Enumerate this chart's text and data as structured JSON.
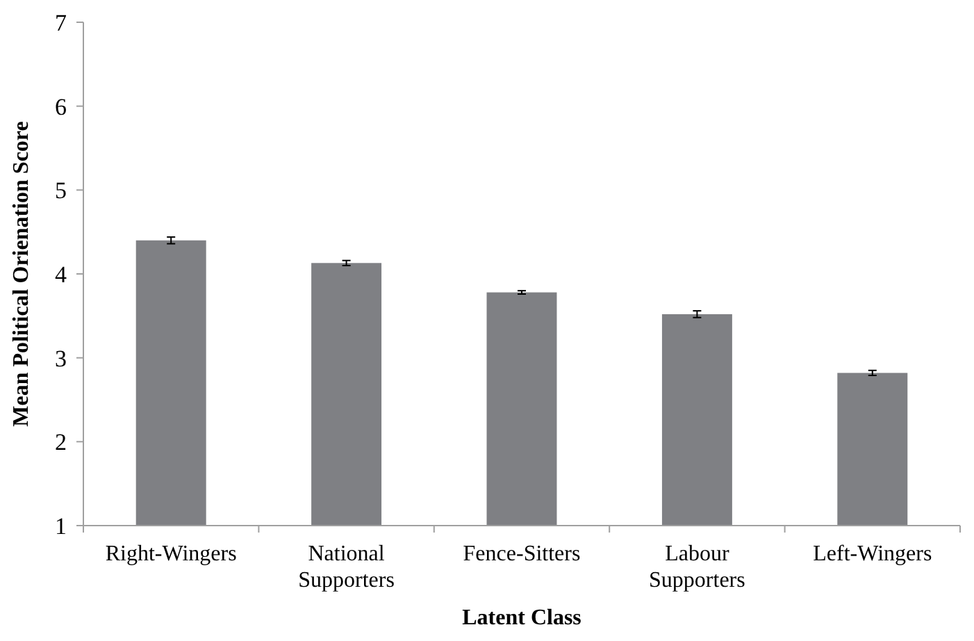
{
  "chart_data": {
    "type": "bar",
    "xlabel": "Latent Class",
    "ylabel": "Mean Political Orienation Score",
    "categories": [
      "Right-Wingers",
      "National Supporters",
      "Fence-Sitters",
      "Labour Supporters",
      "Left-Wingers"
    ],
    "values": [
      4.4,
      4.13,
      3.78,
      3.52,
      2.82
    ],
    "errors": [
      0.04,
      0.03,
      0.02,
      0.04,
      0.03
    ],
    "color": "#7f8084",
    "ylim": [
      1,
      7
    ],
    "yticks": [
      1,
      2,
      3,
      4,
      5,
      6,
      7
    ],
    "grid": false
  }
}
